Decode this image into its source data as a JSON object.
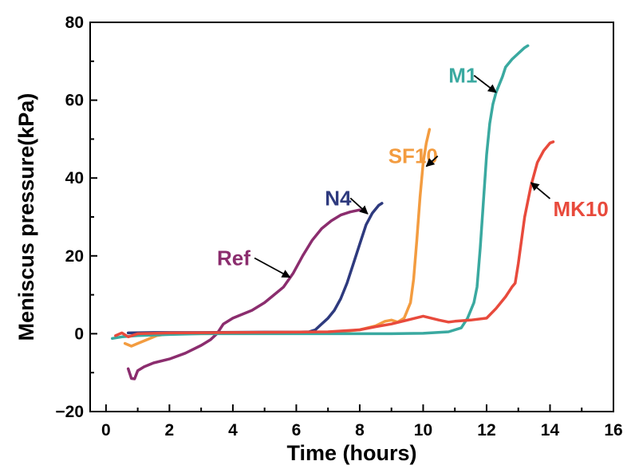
{
  "chart_data": {
    "type": "line",
    "title": "",
    "xlabel": "Time (hours)",
    "ylabel": "Meniscus pressure(kPa)",
    "xlim": [
      -0.5,
      16
    ],
    "ylim": [
      -20,
      80
    ],
    "x_ticks": [
      0,
      2,
      4,
      6,
      8,
      10,
      12,
      14,
      16
    ],
    "x_tick_labels": [
      "0",
      "2",
      "4",
      "6",
      "8",
      "10",
      "12",
      "14",
      "16"
    ],
    "y_ticks": [
      -20,
      0,
      20,
      40,
      60,
      80
    ],
    "y_tick_labels": [
      "−20",
      "0",
      "20",
      "40",
      "60",
      "80"
    ],
    "grid": false,
    "legend": "none",
    "series": [
      {
        "name": "Ref",
        "color": "#8B2D6E",
        "label_at": [
          3.5,
          17.6
        ],
        "arrow_to": [
          5.8,
          14.5
        ],
        "points": [
          [
            0.7,
            -9
          ],
          [
            0.8,
            -11.5
          ],
          [
            0.9,
            -11.6
          ],
          [
            1.0,
            -9.5
          ],
          [
            1.2,
            -8.5
          ],
          [
            1.5,
            -7.5
          ],
          [
            2.0,
            -6.5
          ],
          [
            2.5,
            -5
          ],
          [
            3.0,
            -3
          ],
          [
            3.3,
            -1.5
          ],
          [
            3.5,
            0
          ],
          [
            3.7,
            2.5
          ],
          [
            4.0,
            4
          ],
          [
            4.3,
            5
          ],
          [
            4.6,
            6
          ],
          [
            5.0,
            8
          ],
          [
            5.3,
            10
          ],
          [
            5.6,
            12
          ],
          [
            5.9,
            15.5
          ],
          [
            6.2,
            20
          ],
          [
            6.5,
            24
          ],
          [
            6.8,
            27
          ],
          [
            7.1,
            29
          ],
          [
            7.4,
            30.5
          ],
          [
            7.7,
            31.3
          ],
          [
            8.0,
            31.8
          ]
        ]
      },
      {
        "name": "N4",
        "color": "#2E3A7E",
        "label_at": [
          6.9,
          33.0
        ],
        "arrow_to": [
          8.25,
          30.8
        ],
        "points": [
          [
            0.7,
            0.2
          ],
          [
            1.5,
            0.3
          ],
          [
            3.0,
            0.3
          ],
          [
            5.0,
            0.4
          ],
          [
            6.0,
            0.4
          ],
          [
            6.4,
            0.5
          ],
          [
            6.6,
            1.0
          ],
          [
            6.8,
            2.5
          ],
          [
            7.0,
            4.0
          ],
          [
            7.2,
            6.0
          ],
          [
            7.4,
            9.0
          ],
          [
            7.6,
            13
          ],
          [
            7.8,
            18
          ],
          [
            8.0,
            23
          ],
          [
            8.2,
            28
          ],
          [
            8.4,
            31
          ],
          [
            8.6,
            33
          ],
          [
            8.7,
            33.5
          ]
        ]
      },
      {
        "name": "SF10",
        "color": "#F39C40",
        "label_at": [
          8.9,
          43.8
        ],
        "arrow_to": [
          10.1,
          43.0
        ],
        "points": [
          [
            0.6,
            -2.5
          ],
          [
            0.8,
            -3.2
          ],
          [
            1.0,
            -2.5
          ],
          [
            1.3,
            -1.5
          ],
          [
            1.6,
            -0.5
          ],
          [
            2.0,
            0
          ],
          [
            3.0,
            0
          ],
          [
            5.0,
            0.1
          ],
          [
            7.0,
            0.2
          ],
          [
            8.0,
            1.0
          ],
          [
            8.5,
            2.0
          ],
          [
            8.8,
            3.2
          ],
          [
            9.0,
            3.5
          ],
          [
            9.2,
            3.0
          ],
          [
            9.4,
            4.0
          ],
          [
            9.6,
            8.0
          ],
          [
            9.7,
            14
          ],
          [
            9.8,
            24
          ],
          [
            9.9,
            35
          ],
          [
            10.0,
            44
          ],
          [
            10.1,
            49
          ],
          [
            10.2,
            52.5
          ]
        ]
      },
      {
        "name": "M1",
        "color": "#3AA9A0",
        "label_at": [
          10.8,
          64.5
        ],
        "arrow_to": [
          12.3,
          62.0
        ],
        "points": [
          [
            0.2,
            -1.2
          ],
          [
            0.5,
            -0.8
          ],
          [
            1.0,
            -0.5
          ],
          [
            2.0,
            -0.2
          ],
          [
            3.0,
            0
          ],
          [
            5.0,
            0
          ],
          [
            7.0,
            0
          ],
          [
            9.0,
            0
          ],
          [
            10.0,
            0.1
          ],
          [
            10.8,
            0.5
          ],
          [
            11.2,
            1.5
          ],
          [
            11.4,
            4.0
          ],
          [
            11.6,
            8.0
          ],
          [
            11.7,
            12
          ],
          [
            11.8,
            22
          ],
          [
            11.9,
            34
          ],
          [
            12.0,
            46
          ],
          [
            12.1,
            54
          ],
          [
            12.2,
            59
          ],
          [
            12.3,
            62
          ],
          [
            12.5,
            66
          ],
          [
            12.6,
            68.5
          ],
          [
            12.8,
            70.5
          ],
          [
            13.0,
            72
          ],
          [
            13.2,
            73.5
          ],
          [
            13.3,
            74
          ]
        ]
      },
      {
        "name": "MK10",
        "color": "#E84A3C",
        "label_at": [
          14.1,
          30.2
        ],
        "arrow_to": [
          13.4,
          38.8
        ],
        "points": [
          [
            0.3,
            -0.5
          ],
          [
            0.5,
            0.2
          ],
          [
            0.7,
            -0.8
          ],
          [
            1.0,
            0
          ],
          [
            2.0,
            0.2
          ],
          [
            4.0,
            0.3
          ],
          [
            6.0,
            0.4
          ],
          [
            7.0,
            0.5
          ],
          [
            8.0,
            1.0
          ],
          [
            8.5,
            1.8
          ],
          [
            9.0,
            2.5
          ],
          [
            9.5,
            3.5
          ],
          [
            10.0,
            4.5
          ],
          [
            10.5,
            3.5
          ],
          [
            10.8,
            3.0
          ],
          [
            11.0,
            3.2
          ],
          [
            11.5,
            3.5
          ],
          [
            12.0,
            4.0
          ],
          [
            12.3,
            6.5
          ],
          [
            12.6,
            9.5
          ],
          [
            12.8,
            12
          ],
          [
            12.9,
            13
          ],
          [
            13.0,
            18
          ],
          [
            13.1,
            24
          ],
          [
            13.2,
            30
          ],
          [
            13.4,
            38
          ],
          [
            13.6,
            44
          ],
          [
            13.8,
            47
          ],
          [
            14.0,
            49
          ],
          [
            14.1,
            49.3
          ]
        ]
      }
    ]
  }
}
